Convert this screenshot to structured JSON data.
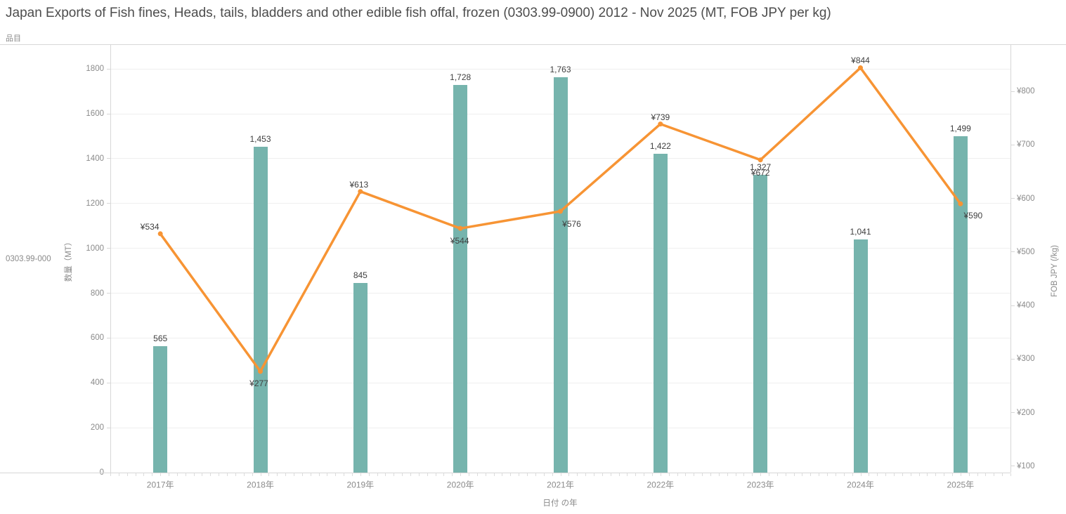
{
  "header": {
    "title": "Japan Exports of Fish fines, Heads, tails, bladders and other edible fish offal, frozen (0303.99-0900) 2012 - Nov 2025 (MT, FOB JPY per kg)",
    "field_label": "品目"
  },
  "row_header": {
    "code_label": "0303.99-000"
  },
  "chart_data": {
    "type": "combo",
    "title": "Japan Exports of Fish fines, Heads, tails, bladders and other edible fish offal, frozen (0303.99-0900) 2012 - Nov 2025 (MT, FOB JPY per kg)",
    "xlabel": "日付 の年",
    "ylabel_left": "数量（MT）",
    "ylabel_right": "FOB JPY (/kg)",
    "categories": [
      "2017年",
      "2018年",
      "2019年",
      "2020年",
      "2021年",
      "2022年",
      "2023年",
      "2024年",
      "2025年"
    ],
    "series": [
      {
        "name": "数量 (MT)",
        "chart_type": "bar",
        "axis": "left",
        "color": "#76b4ad",
        "values": [
          565,
          1453,
          845,
          1728,
          1763,
          1422,
          1327,
          1041,
          1499
        ],
        "labels": [
          "565",
          "1,453",
          "845",
          "1,728",
          "1,763",
          "1,422",
          "1,327",
          "1,041",
          "1,499"
        ]
      },
      {
        "name": "FOB JPY (/kg)",
        "chart_type": "line",
        "axis": "right",
        "color": "#f79434",
        "values": [
          534,
          277,
          613,
          544,
          576,
          739,
          672,
          844,
          590
        ],
        "labels": [
          "¥534",
          "¥277",
          "¥613",
          "¥544",
          "¥576",
          "¥739",
          "¥672",
          "¥844",
          "¥590"
        ],
        "label_offsets": [
          [
            -15,
            -10
          ],
          [
            -2,
            17
          ],
          [
            -2,
            -10
          ],
          [
            -1,
            18
          ],
          [
            16,
            18
          ],
          [
            0,
            -10
          ],
          [
            0,
            18
          ],
          [
            0,
            -11
          ],
          [
            18,
            17
          ]
        ]
      }
    ],
    "left_axis": {
      "tick_labels": [
        "0",
        "200",
        "400",
        "600",
        "800",
        "1000",
        "1200",
        "1400",
        "1600",
        "1800"
      ],
      "tick_values": [
        0,
        200,
        400,
        600,
        800,
        1000,
        1200,
        1400,
        1600,
        1800
      ],
      "range": [
        0,
        1910
      ]
    },
    "right_axis": {
      "tick_labels": [
        "¥100",
        "¥200",
        "¥300",
        "¥400",
        "¥500",
        "¥600",
        "¥700",
        "¥800"
      ],
      "tick_values": [
        100,
        200,
        300,
        400,
        500,
        600,
        700,
        800
      ],
      "range": [
        88,
        888
      ]
    },
    "grid": "horizontal",
    "legend": "none"
  },
  "colors": {
    "bar": "#76b4ad",
    "line": "#f79434",
    "grid": "#efefef",
    "border": "#d7d7d7",
    "tick_text": "#8a8a8a",
    "label_text": "#3f3f3f",
    "title_text": "#4d4d4d"
  }
}
